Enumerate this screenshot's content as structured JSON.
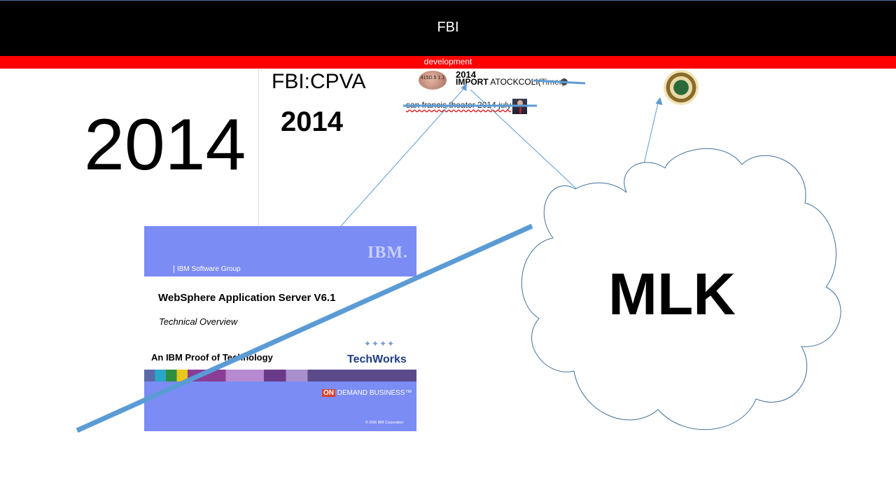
{
  "header": {
    "title": "FBI",
    "subtitle": "development"
  },
  "big_year": "2014",
  "cpva_title": "FBI:CPVA",
  "year_bold": "2014",
  "brain_label": "415D.5 1.1",
  "small_year": "2014",
  "import_bold": "IMPORT",
  "import_text": "ATOCKCOLI(",
  "import_timer": "Timer)",
  "theater_text": "san francis theater 2014 july",
  "ibm_slide": {
    "logo": "IBM.",
    "group": "IBM Software Group",
    "title": "WebSphere Application Server V6.1",
    "subtitle": "Technical Overview",
    "proof": "An IBM Proof of Technology",
    "techworks": "TechWorks",
    "ondemand_on": "ON",
    "ondemand_text": "DEMAND BUSINESS™",
    "copyright": "© 2006 IBM Corporation"
  },
  "cloud_label": "MLK",
  "colors": {
    "header": "#000000",
    "subbar": "#ff0000",
    "slide_blue": "#7b8cf5",
    "connector": "#5b9bd5"
  }
}
